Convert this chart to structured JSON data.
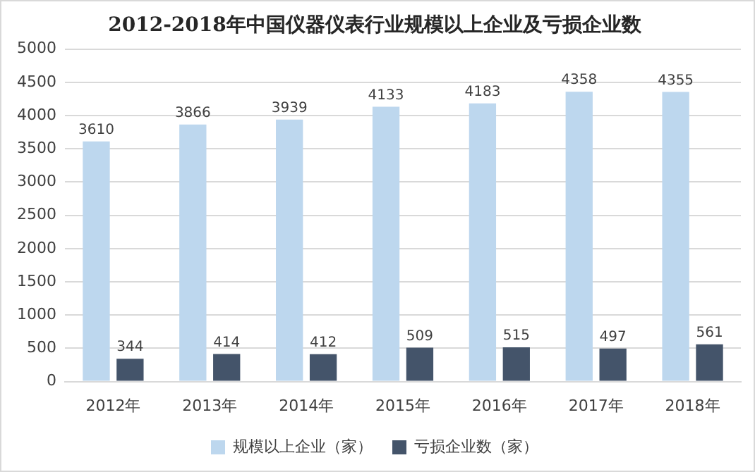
{
  "chart_data": {
    "type": "bar",
    "title": "2012-2018年中国仪器仪表行业规模以上企业及亏损企业数",
    "categories": [
      "2012年",
      "2013年",
      "2014年",
      "2015年",
      "2016年",
      "2017年",
      "2018年"
    ],
    "series": [
      {
        "name": "规模以上企业（家）",
        "color": "#bdd7ee",
        "values": [
          3610,
          3866,
          3939,
          4133,
          4183,
          4358,
          4355
        ]
      },
      {
        "name": "亏损企业数（家）",
        "color": "#44546a",
        "values": [
          344,
          414,
          412,
          509,
          515,
          497,
          561
        ]
      }
    ],
    "ylim": [
      0,
      5000
    ],
    "yticks": [
      0,
      500,
      1000,
      1500,
      2000,
      2500,
      3000,
      3500,
      4000,
      4500,
      5000
    ],
    "grid": "y",
    "legend": "bottom",
    "data_labels": true
  }
}
